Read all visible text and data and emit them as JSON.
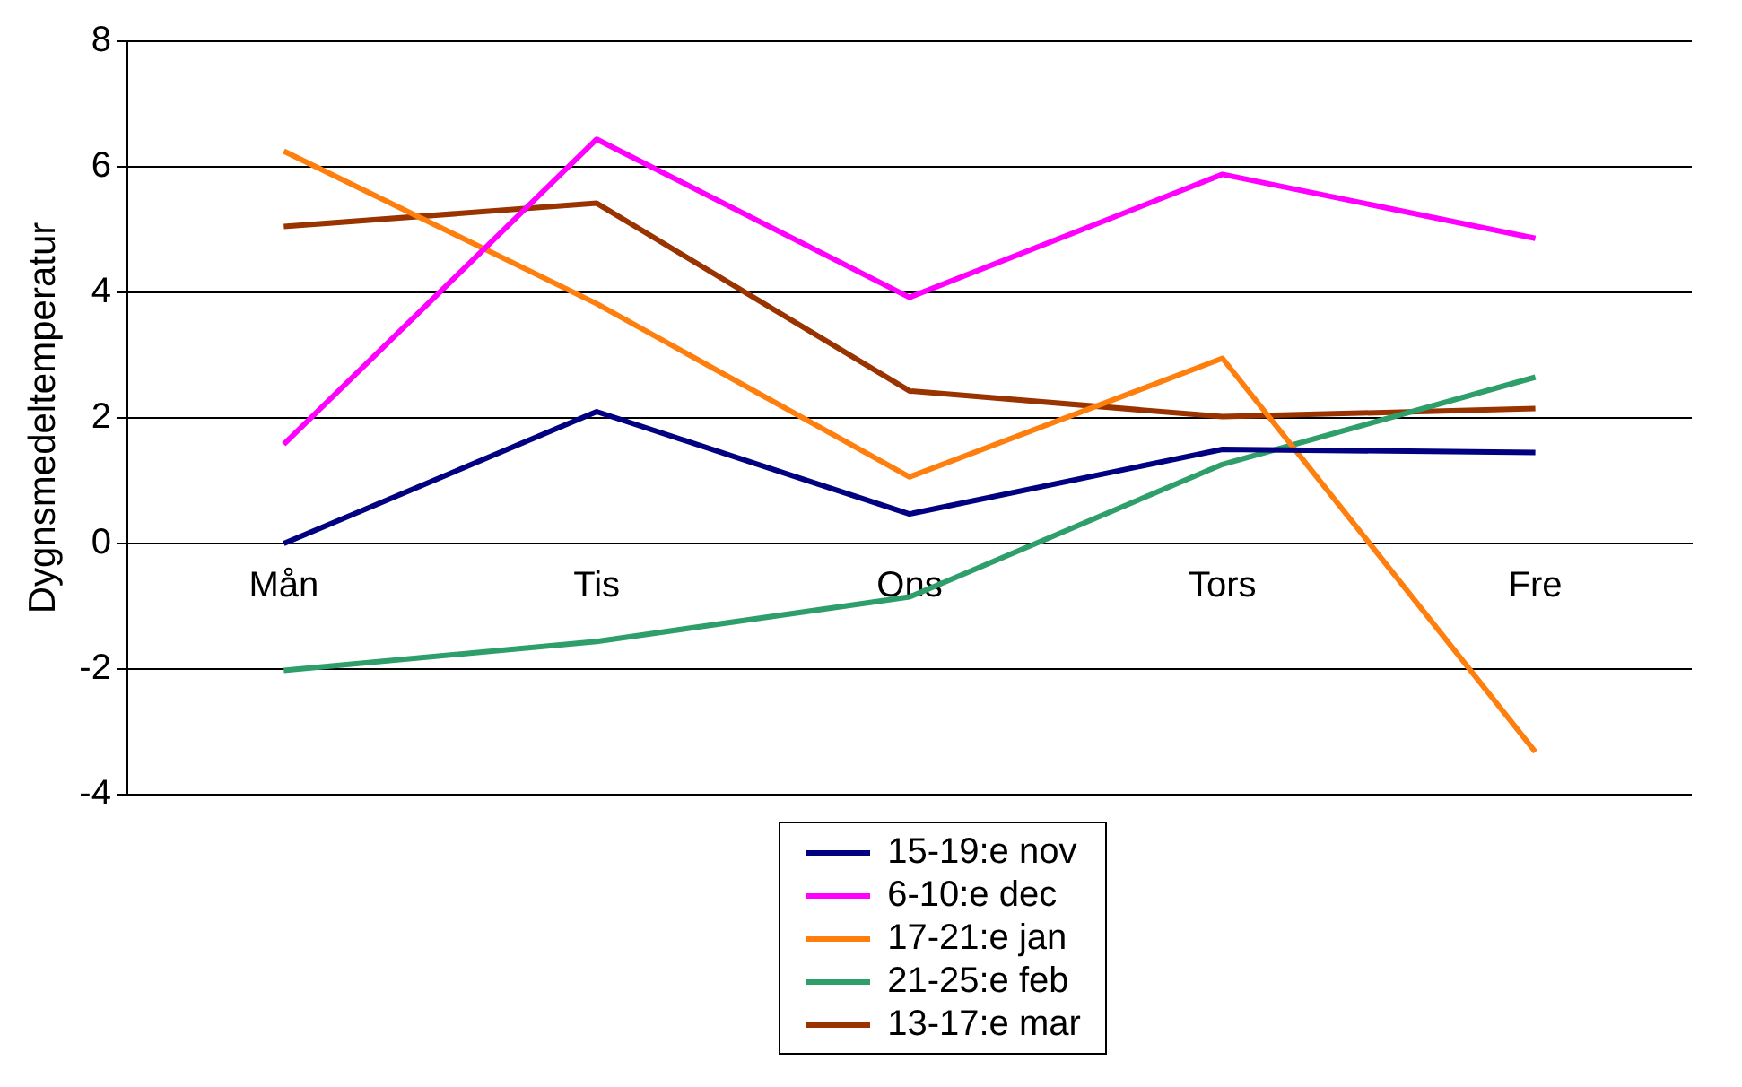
{
  "chart_data": {
    "type": "line",
    "ylabel": "Dygnsmedeltemperatur",
    "categories": [
      "Mån",
      "Tis",
      "Ons",
      "Tors",
      "Fre"
    ],
    "series": [
      {
        "name": "15-19:e nov",
        "color": "#000080",
        "values": [
          0,
          2.1,
          0.47,
          1.5,
          1.45
        ]
      },
      {
        "name": "6-10:e dec",
        "color": "#ff00ff",
        "values": [
          1.58,
          6.44,
          3.92,
          5.88,
          4.86
        ]
      },
      {
        "name": "17-21:e jan",
        "color": "#ff7f0e",
        "values": [
          6.25,
          3.82,
          1.06,
          2.95,
          -3.32
        ]
      },
      {
        "name": "21-25:e feb",
        "color": "#2e9e6a",
        "values": [
          -2.02,
          -1.56,
          -0.85,
          1.26,
          2.65
        ]
      },
      {
        "name": "13-17:e mar",
        "color": "#993300",
        "values": [
          5.05,
          5.42,
          2.43,
          2.02,
          2.15
        ]
      }
    ],
    "ylim": [
      -4,
      8
    ],
    "yticks": [
      -4,
      -2,
      0,
      2,
      4,
      6,
      8
    ],
    "grid": "y",
    "legend": "bottom",
    "marker": "none",
    "line_style": "solid"
  }
}
